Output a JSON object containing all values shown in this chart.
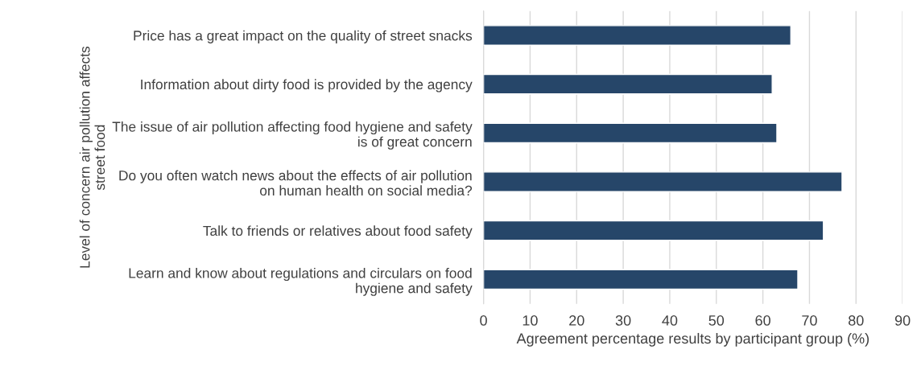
{
  "chart_data": {
    "type": "bar",
    "orientation": "horizontal",
    "ylabel": "Level of concern air pollution affects\nstreet food",
    "xlabel": "Agreement percentage results by participant group (%)",
    "categories": [
      "Price has a great impact on the quality of street snacks",
      "Information about dirty food is provided by the agency",
      "The issue of air pollution affecting food hygiene and safety\nis of great concern",
      "Do you often watch news about the effects of air pollution\non human health on social media?",
      "Talk to friends or relatives about food safety",
      "Learn and know about regulations and circulars on food\nhygiene and safety"
    ],
    "values": [
      66,
      62,
      63,
      77,
      73,
      67.5
    ],
    "color": "#264669",
    "xlim": [
      0,
      90
    ],
    "xticks": [
      0,
      10,
      20,
      30,
      40,
      50,
      60,
      70,
      80,
      90
    ],
    "grid": "x",
    "legend": false
  }
}
